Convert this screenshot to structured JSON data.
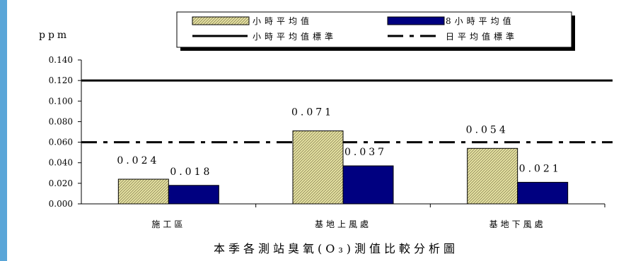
{
  "chart_data": {
    "type": "bar",
    "title": "本季各測站臭氧(O₃)測值比較分析圖",
    "ylabel": "ppm",
    "xlabel": "",
    "categories": [
      "施工區",
      "基地上風處",
      "基地下風處"
    ],
    "series": [
      {
        "name": "小時平均值",
        "values": [
          0.024,
          0.071,
          0.054
        ],
        "color": "#e8e4a4",
        "pattern": "diagonal-hatch"
      },
      {
        "name": "8小時平均值",
        "values": [
          0.018,
          0.037,
          0.021
        ],
        "color": "#000080"
      }
    ],
    "data_labels": [
      [
        "0.024",
        "0.071",
        "0.054"
      ],
      [
        "0.018",
        "0.037",
        "0.021"
      ]
    ],
    "reference_lines": [
      {
        "name": "小時平均值標準",
        "value": 0.12,
        "style": "solid"
      },
      {
        "name": "日平均值標準",
        "value": 0.06,
        "style": "dash-dot"
      }
    ],
    "ylim": [
      0,
      0.14
    ],
    "yticks": [
      "0.000",
      "0.020",
      "0.040",
      "0.060",
      "0.080",
      "0.100",
      "0.120",
      "0.140"
    ],
    "grid": false,
    "legend_position": "top-right"
  }
}
